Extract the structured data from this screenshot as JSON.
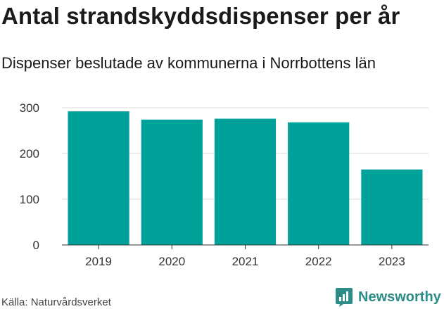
{
  "title": "Antal strandskyddsdispenser per år",
  "subtitle": "Dispenser beslutade av kommunerna i Norrbottens län",
  "source": "Källa: Naturvårdsverket",
  "brand": {
    "name": "Newsworthy",
    "icon": "newsworthy-logo-icon"
  },
  "colors": {
    "bar": "#00a199",
    "grid": "#dddddd",
    "axis": "#333333",
    "brand": "#2c8c87"
  },
  "chart_data": {
    "type": "bar",
    "title": "Antal strandskyddsdispenser per år",
    "subtitle": "Dispenser beslutade av kommunerna i Norrbottens län",
    "categories": [
      "2019",
      "2020",
      "2021",
      "2022",
      "2023"
    ],
    "values": [
      292,
      274,
      276,
      268,
      165
    ],
    "xlabel": "",
    "ylabel": "",
    "ylim": [
      0,
      300
    ],
    "yticks": [
      0,
      100,
      200,
      300
    ],
    "grid": true,
    "legend": "none"
  }
}
